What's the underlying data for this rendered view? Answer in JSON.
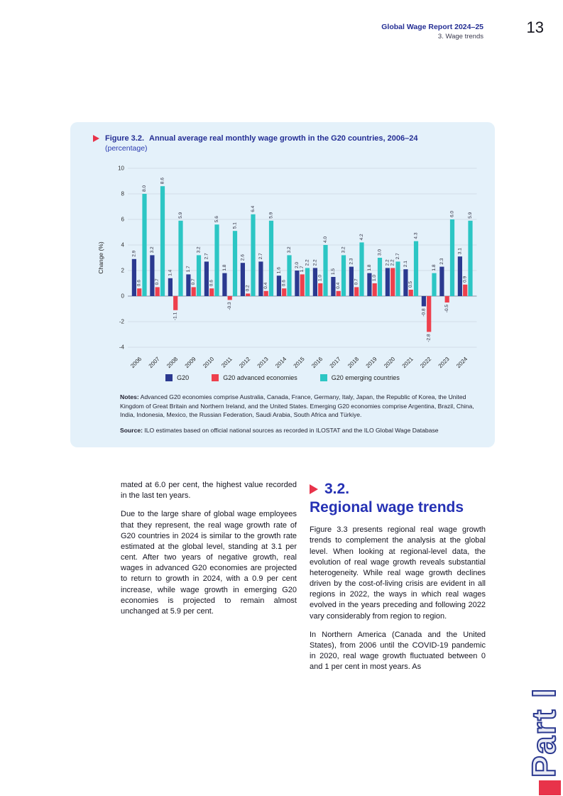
{
  "header": {
    "title": "Global Wage Report 2024–25",
    "subtitle": "3. Wage trends",
    "page_number": "13"
  },
  "figure": {
    "label": "Figure 3.2.",
    "title": "Annual average real monthly wage growth in the G20 countries, 2006–24",
    "subtitle": "(percentage)",
    "notes_label": "Notes:",
    "notes": "Advanced G20 economies comprise Australia, Canada, France, Germany, Italy, Japan, the Republic of Korea, the United Kingdom of Great Britain and Northern Ireland, and the United States. Emerging G20 economies comprise Argentina, Brazil, China, India, Indonesia, Mexico, the Russian Federation, Saudi Arabia, South Africa and Türkiye.",
    "source_label": "Source:",
    "source": "ILO estimates based on official national sources as recorded in ILOSTAT and the ILO Global Wage Database"
  },
  "chart_data": {
    "type": "bar",
    "title": "Annual average real monthly wage growth in the G20 countries, 2006–24",
    "ylabel": "Change (%)",
    "ylim": [
      -4,
      10
    ],
    "yticks": [
      10,
      8,
      6,
      4,
      2,
      0,
      -2,
      -4
    ],
    "grid": true,
    "legend_position": "bottom",
    "categories": [
      "2006",
      "2007",
      "2008",
      "2009",
      "2010",
      "2011",
      "2012",
      "2013",
      "2014",
      "2015",
      "2016",
      "2017",
      "2018",
      "2019",
      "2020",
      "2021",
      "2022",
      "2023",
      "2024"
    ],
    "series": [
      {
        "name": "G20",
        "color": "#2b3990",
        "values": [
          2.9,
          3.2,
          1.4,
          1.7,
          2.7,
          1.8,
          2.6,
          2.7,
          1.6,
          2.0,
          2.2,
          1.5,
          2.3,
          1.8,
          2.2,
          2.1,
          -0.8,
          2.3,
          3.1
        ]
      },
      {
        "name": "G20 advanced economies",
        "color": "#ee404d",
        "values": [
          0.6,
          0.7,
          -1.1,
          0.7,
          0.6,
          -0.3,
          0.2,
          0.4,
          0.6,
          1.7,
          1.0,
          0.4,
          0.7,
          1.0,
          2.2,
          0.5,
          -2.8,
          -0.5,
          0.9
        ]
      },
      {
        "name": "G20 emerging countries",
        "color": "#2cc6c4",
        "values": [
          8.0,
          8.6,
          5.9,
          3.2,
          5.6,
          5.1,
          6.4,
          5.9,
          3.2,
          2.2,
          4.0,
          3.2,
          4.2,
          3.0,
          2.7,
          4.3,
          1.8,
          6.0,
          5.9
        ]
      }
    ]
  },
  "body": {
    "left": {
      "p1": "mated at 6.0 per cent, the highest value recorded in the last ten years.",
      "p2": "Due to the large share of global wage employees that they represent, the real wage growth rate of G20 countries in 2024 is similar to the growth rate estimated at the global level, standing at 3.1 per cent. After two years of negative growth, real wages in advanced G20 economies are projected to return to growth in 2024, with a 0.9 per cent increase, while wage growth in emerging G20 economies is projected to remain almost unchanged at 5.9 per cent."
    },
    "right": {
      "section_number": "3.2.",
      "section_title": "Regional wage trends",
      "p1": "Figure 3.3 presents regional real wage growth trends to complement the analysis at the global level. When looking at regional-level data, the evolution of real wage growth reveals substantial heterogeneity. While real wage growth declines driven by the cost-of-living crisis are evident in all regions in 2022, the ways in which real wages evolved in the years preceding and following 2022 vary considerably from region to region.",
      "p2": "In Northern America (Canada and the United States), from 2006 until the COVID-19 pandemic in 2020, real wage growth fluctuated between 0 and 1 per cent in most years. As"
    }
  },
  "part_label": "Part I"
}
